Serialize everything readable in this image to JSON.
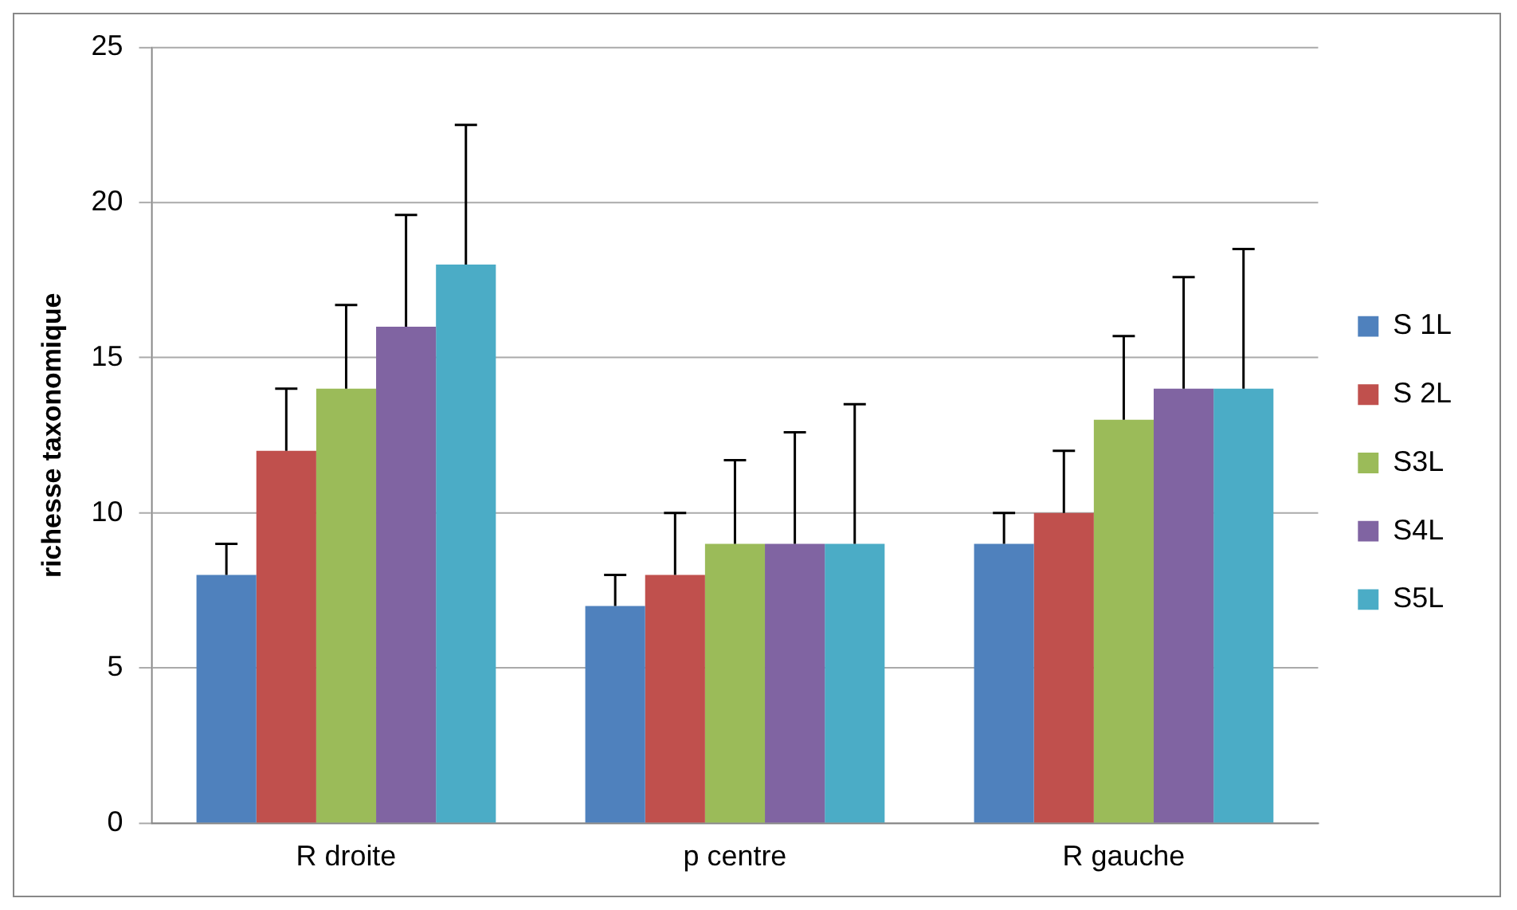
{
  "chart_data": {
    "type": "bar",
    "ylabel": "richesse taxonomique",
    "categories": [
      "R droite",
      "p centre",
      "R gauche"
    ],
    "series": [
      {
        "name": "S 1L",
        "color": "#4f81bd",
        "values": [
          8,
          7,
          9
        ],
        "errors": [
          [
            8,
            9
          ],
          [
            7,
            8
          ],
          [
            9,
            10
          ]
        ]
      },
      {
        "name": "S 2L",
        "color": "#c0504d",
        "values": [
          12,
          8,
          10
        ],
        "errors": [
          [
            12,
            14
          ],
          [
            8,
            10
          ],
          [
            10,
            12
          ]
        ]
      },
      {
        "name": "S3L",
        "color": "#9bbb59",
        "values": [
          14,
          9,
          13
        ],
        "errors": [
          [
            14,
            16.7
          ],
          [
            9,
            11.7
          ],
          [
            13,
            15.7
          ]
        ]
      },
      {
        "name": "S4L",
        "color": "#8064a2",
        "values": [
          16,
          9,
          14
        ],
        "errors": [
          [
            16,
            19.6
          ],
          [
            9,
            12.6
          ],
          [
            14,
            17.6
          ]
        ]
      },
      {
        "name": "S5L",
        "color": "#4bacc6",
        "values": [
          18,
          9,
          14
        ],
        "errors": [
          [
            18,
            22.5
          ],
          [
            9,
            13.5
          ],
          [
            14,
            18.5
          ]
        ]
      }
    ],
    "ylim": [
      0,
      25
    ],
    "yticks": [
      0,
      5,
      10,
      15,
      20,
      25
    ],
    "grid": "y",
    "legend": "right"
  }
}
